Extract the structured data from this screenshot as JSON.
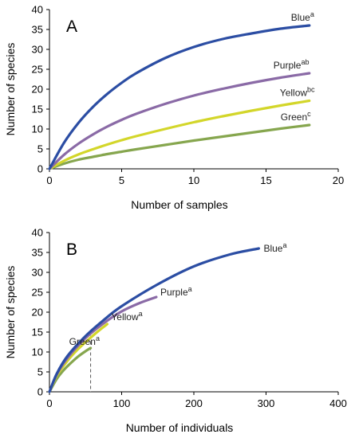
{
  "colors": {
    "blue": "#2b4da3",
    "purple": "#8a6aa6",
    "yellow": "#d3d62a",
    "green": "#86a64e"
  },
  "chart_data": [
    {
      "type": "line",
      "panel_label": "A",
      "xlabel": "Number of samples",
      "ylabel": "Number of species",
      "xlim": [
        0,
        20
      ],
      "ylim": [
        0,
        40
      ],
      "xticks": [
        0,
        5,
        10,
        15,
        20
      ],
      "yticks": [
        0,
        5,
        10,
        15,
        20,
        25,
        30,
        35,
        40
      ],
      "grid": false,
      "series": [
        {
          "name": "Blue",
          "sup": "a",
          "color": "#2b4da3",
          "x": [
            0,
            1,
            2,
            3,
            4,
            5,
            6,
            8,
            10,
            12,
            14,
            16,
            18
          ],
          "y": [
            0,
            6.5,
            11.5,
            15.5,
            18.8,
            21.6,
            24.0,
            27.8,
            30.6,
            32.6,
            34.0,
            35.2,
            36.0
          ]
        },
        {
          "name": "Purple",
          "sup": "ab",
          "color": "#8a6aa6",
          "x": [
            0,
            1,
            2,
            3,
            4,
            5,
            6,
            8,
            10,
            12,
            14,
            16,
            18
          ],
          "y": [
            0,
            3.5,
            6.3,
            8.6,
            10.6,
            12.3,
            13.8,
            16.3,
            18.4,
            20.1,
            21.6,
            22.9,
            24.0
          ]
        },
        {
          "name": "Yellow",
          "sup": "bc",
          "color": "#d3d62a",
          "x": [
            0,
            1,
            2,
            3,
            4,
            5,
            6,
            8,
            10,
            12,
            14,
            16,
            18
          ],
          "y": [
            0,
            2.0,
            3.6,
            4.9,
            6.1,
            7.2,
            8.2,
            10.0,
            11.7,
            13.2,
            14.6,
            15.9,
            17.1
          ]
        },
        {
          "name": "Green",
          "sup": "c",
          "color": "#86a64e",
          "x": [
            0,
            1,
            2,
            3,
            4,
            5,
            6,
            8,
            10,
            12,
            14,
            16,
            18
          ],
          "y": [
            0,
            1.3,
            2.3,
            3.0,
            3.7,
            4.3,
            4.9,
            6.0,
            7.1,
            8.1,
            9.1,
            10.1,
            11.0
          ]
        }
      ]
    },
    {
      "type": "line",
      "panel_label": "B",
      "xlabel": "Number of individuals",
      "ylabel": "Number of species",
      "xlim": [
        0,
        400
      ],
      "ylim": [
        0,
        40
      ],
      "xticks": [
        0,
        100,
        200,
        300,
        400
      ],
      "yticks": [
        0,
        5,
        10,
        15,
        20,
        25,
        30,
        35,
        40
      ],
      "grid": false,
      "reference_line_x": 57,
      "series": [
        {
          "name": "Blue",
          "sup": "a",
          "color": "#2b4da3",
          "x": [
            0,
            10,
            25,
            50,
            75,
            100,
            150,
            200,
            250,
            290
          ],
          "y": [
            0,
            4.5,
            9.0,
            14.0,
            18.0,
            21.5,
            27.0,
            31.5,
            34.5,
            36.0
          ]
        },
        {
          "name": "Purple",
          "sup": "a",
          "color": "#8a6aa6",
          "x": [
            0,
            10,
            25,
            50,
            75,
            100,
            125,
            148
          ],
          "y": [
            0,
            4.3,
            8.5,
            13.5,
            17.2,
            20.2,
            22.3,
            23.8
          ]
        },
        {
          "name": "Yellow",
          "sup": "a",
          "color": "#d3d62a",
          "x": [
            0,
            10,
            25,
            40,
            57,
            70,
            80
          ],
          "y": [
            0,
            4.0,
            7.8,
            10.8,
            13.6,
            15.6,
            17.0
          ]
        },
        {
          "name": "Green",
          "sup": "a",
          "color": "#86a64e",
          "x": [
            0,
            10,
            20,
            30,
            40,
            50,
            57
          ],
          "y": [
            0,
            3.2,
            5.5,
            7.3,
            8.9,
            10.2,
            11.0
          ]
        }
      ]
    }
  ]
}
